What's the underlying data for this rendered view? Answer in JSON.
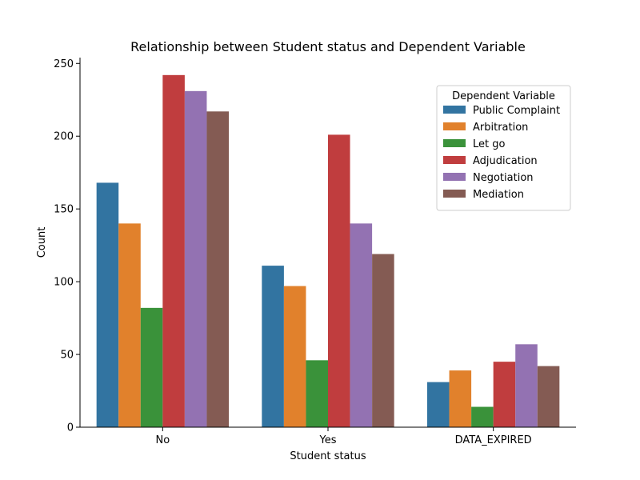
{
  "chart_data": {
    "type": "bar",
    "title": "Relationship between Student status and Dependent Variable",
    "xlabel": "Student status",
    "ylabel": "Count",
    "categories": [
      "No",
      "Yes",
      "DATA_EXPIRED"
    ],
    "ylim": [
      0,
      254
    ],
    "yticks": [
      "0",
      "50",
      "100",
      "150",
      "200",
      "250"
    ],
    "legend": {
      "title": "Dependent Variable",
      "placement": "top-right"
    },
    "series": [
      {
        "name": "Public Complaint",
        "color": "#3274a1",
        "values": [
          168,
          111,
          31
        ]
      },
      {
        "name": "Arbitration",
        "color": "#e1812c",
        "values": [
          140,
          97,
          39
        ]
      },
      {
        "name": "Let go",
        "color": "#3a923a",
        "values": [
          82,
          46,
          14
        ]
      },
      {
        "name": "Adjudication",
        "color": "#c03d3e",
        "values": [
          242,
          201,
          45
        ]
      },
      {
        "name": "Negotiation",
        "color": "#9372b2",
        "values": [
          231,
          140,
          57
        ]
      },
      {
        "name": "Mediation",
        "color": "#845b53",
        "values": [
          217,
          119,
          42
        ]
      }
    ]
  }
}
